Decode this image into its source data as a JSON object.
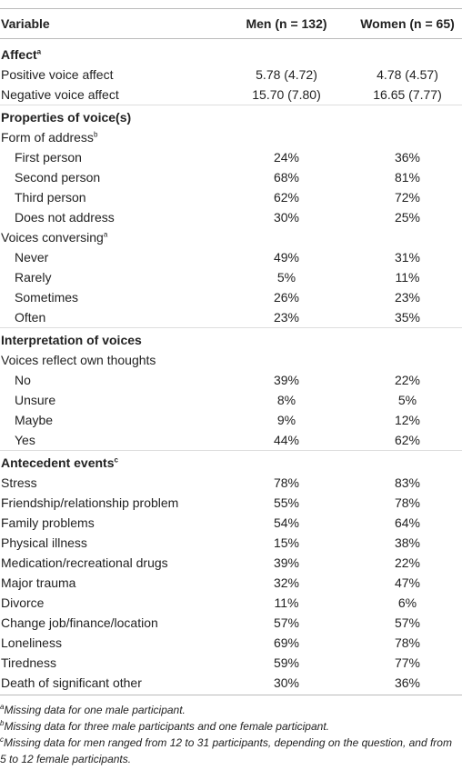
{
  "table": {
    "columns": [
      "Variable",
      "Men (n = 132)",
      "Women (n = 65)"
    ],
    "rows": [
      {
        "label": "Affect",
        "sup": "a",
        "bold": true
      },
      {
        "label": "Positive voice affect",
        "values": [
          "5.78 (4.72)",
          "4.78 (4.57)"
        ]
      },
      {
        "label": "Negative voice affect",
        "values": [
          "15.70 (7.80)",
          "16.65 (7.77)"
        ]
      },
      {
        "label": "Properties of voice(s)",
        "bold": true
      },
      {
        "label": "Form of address",
        "sup": "b"
      },
      {
        "label": "First person",
        "indent": true,
        "values": [
          "24%",
          "36%"
        ]
      },
      {
        "label": "Second person",
        "indent": true,
        "values": [
          "68%",
          "81%"
        ]
      },
      {
        "label": "Third person",
        "indent": true,
        "values": [
          "62%",
          "72%"
        ]
      },
      {
        "label": "Does not address",
        "indent": true,
        "values": [
          "30%",
          "25%"
        ]
      },
      {
        "label": "Voices conversing",
        "sup": "a"
      },
      {
        "label": "Never",
        "indent": true,
        "values": [
          "49%",
          "31%"
        ]
      },
      {
        "label": "Rarely",
        "indent": true,
        "values": [
          "5%",
          "11%"
        ]
      },
      {
        "label": "Sometimes",
        "indent": true,
        "values": [
          "26%",
          "23%"
        ]
      },
      {
        "label": "Often",
        "indent": true,
        "values": [
          "23%",
          "35%"
        ]
      },
      {
        "label": "Interpretation of voices",
        "bold": true
      },
      {
        "label": "Voices reflect own thoughts"
      },
      {
        "label": "No",
        "indent": true,
        "values": [
          "39%",
          "22%"
        ]
      },
      {
        "label": "Unsure",
        "indent": true,
        "values": [
          "8%",
          "5%"
        ]
      },
      {
        "label": "Maybe",
        "indent": true,
        "values": [
          "9%",
          "12%"
        ]
      },
      {
        "label": "Yes",
        "indent": true,
        "values": [
          "44%",
          "62%"
        ]
      },
      {
        "label": "Antecedent events",
        "sup": "c",
        "bold": true
      },
      {
        "label": "Stress",
        "values": [
          "78%",
          "83%"
        ]
      },
      {
        "label": "Friendship/relationship problem",
        "values": [
          "55%",
          "78%"
        ]
      },
      {
        "label": "Family problems",
        "values": [
          "54%",
          "64%"
        ]
      },
      {
        "label": "Physical illness",
        "values": [
          "15%",
          "38%"
        ]
      },
      {
        "label": "Medication/recreational drugs",
        "values": [
          "39%",
          "22%"
        ]
      },
      {
        "label": "Major trauma",
        "values": [
          "32%",
          "47%"
        ]
      },
      {
        "label": "Divorce",
        "values": [
          "11%",
          "6%"
        ]
      },
      {
        "label": "Change job/finance/location",
        "values": [
          "57%",
          "57%"
        ]
      },
      {
        "label": "Loneliness",
        "values": [
          "69%",
          "78%"
        ]
      },
      {
        "label": "Tiredness",
        "values": [
          "59%",
          "77%"
        ]
      },
      {
        "label": "Death of significant other",
        "values": [
          "30%",
          "36%"
        ]
      }
    ],
    "footnotes": [
      {
        "mark": "a",
        "text": "Missing data for one male participant."
      },
      {
        "mark": "b",
        "text": "Missing data for three male participants and one female participant."
      },
      {
        "mark": "c",
        "text": "Missing data for men ranged from 12 to 31 participants, depending on the question, and from 5 to 12 female participants."
      }
    ]
  }
}
